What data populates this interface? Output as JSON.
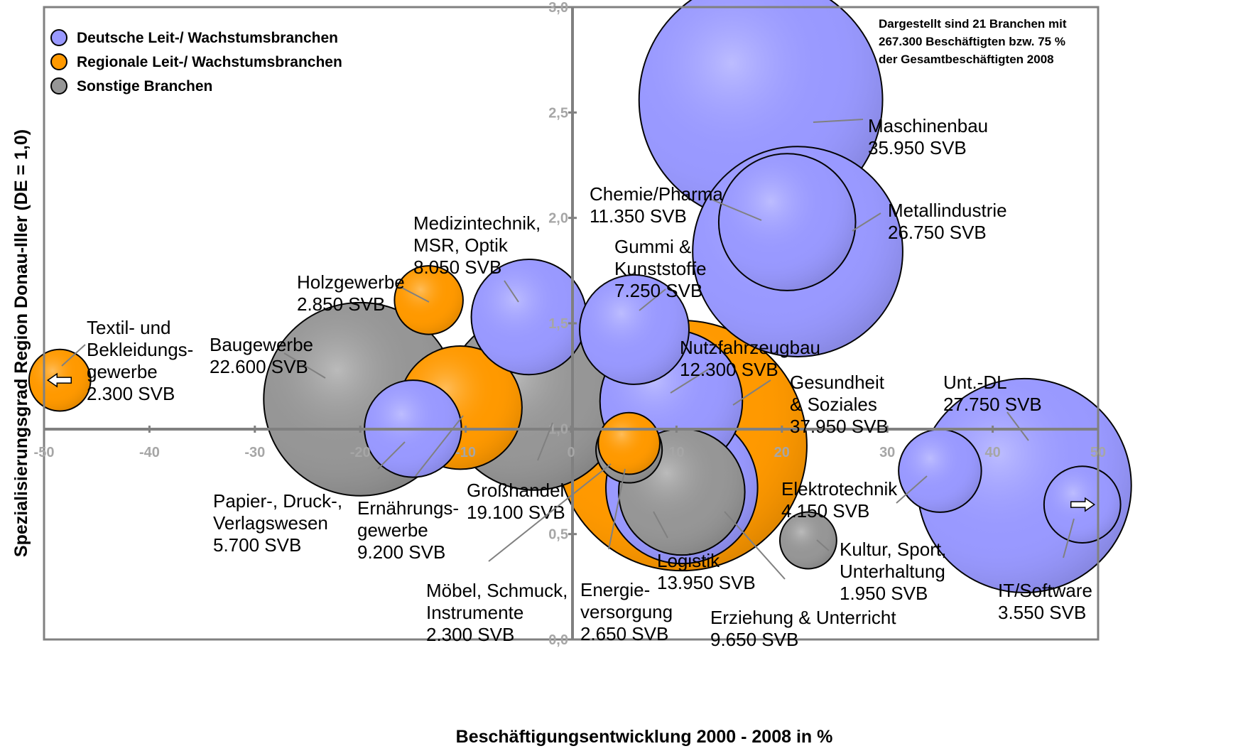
{
  "chart_data": {
    "type": "bubble",
    "title": "",
    "xlabel": "Beschäftigungsentwicklung 2000 - 2008 in %",
    "ylabel": "Spezialisierungsgrad Region Donau-Iller (DE = 1,0)",
    "xlim": [
      -50,
      50
    ],
    "ylim": [
      0.0,
      3.0
    ],
    "x_ticks": [
      "-50",
      "-40",
      "-30",
      "-20",
      "-10",
      "0",
      "10",
      "20",
      "30",
      "40",
      "50"
    ],
    "y_ticks": [
      "0,0",
      "0,5",
      "1,0",
      "1,5",
      "2,0",
      "2,5",
      "3,0"
    ],
    "legend": [
      {
        "name": "Deutsche Leit-/ Wachstumsbranchen",
        "color": "#9999ff"
      },
      {
        "name": "Regionale Leit-/ Wachstumsbranchen",
        "color": "#ff9900"
      },
      {
        "name": "Sonstige Branchen",
        "color": "#969696"
      }
    ],
    "note_lines": [
      "Dargestellt sind 21 Branchen mit",
      "267.300 Beschäftigten bzw. 75 %",
      "der Gesamtbeschäftigten 2008"
    ],
    "series": [
      {
        "label_lines": [
          "Gesundheit",
          "& Soziales",
          "37.950 SVB"
        ],
        "x": 10.5,
        "y": 0.92,
        "svb": 37950,
        "group": 1
      },
      {
        "label_lines": [
          "Maschinenbau",
          "35.950 SVB"
        ],
        "x": 18.0,
        "y": 2.56,
        "svb": 35950,
        "group": 0
      },
      {
        "label_lines": [
          "Unt.-DL",
          "27.750 SVB"
        ],
        "x": 43.0,
        "y": 0.73,
        "svb": 27750,
        "group": 0
      },
      {
        "label_lines": [
          "Metallindustrie",
          "26.750 SVB"
        ],
        "x": 21.5,
        "y": 1.84,
        "svb": 26750,
        "group": 0
      },
      {
        "label_lines": [
          "Baugewerbe",
          "22.600 SVB"
        ],
        "x": -20.0,
        "y": 1.14,
        "svb": 22600,
        "group": 2
      },
      {
        "label_lines": [
          "Großhandel",
          "19.100 SVB"
        ],
        "x": -3.5,
        "y": 1.13,
        "svb": 19100,
        "group": 2
      },
      {
        "label_lines": [
          "Logistik",
          "13.950 SVB"
        ],
        "x": 10.5,
        "y": 0.72,
        "svb": 13950,
        "group": 0
      },
      {
        "label_lines": [
          "Nutzfahrzeugbau",
          "12.300 SVB"
        ],
        "x": 9.5,
        "y": 1.13,
        "svb": 12300,
        "group": 0
      },
      {
        "label_lines": [
          "Chemie/Pharma",
          "11.350 SVB"
        ],
        "x": 20.5,
        "y": 1.98,
        "svb": 11350,
        "group": 0
      },
      {
        "label_lines": [
          "Erziehung & Unterricht",
          "9.650 SVB"
        ],
        "x": 10.5,
        "y": 0.7,
        "svb": 9650,
        "group": 2
      },
      {
        "label_lines": [
          "Ernährungs-",
          "gewerbe",
          "9.200 SVB"
        ],
        "x": -10.5,
        "y": 1.1,
        "svb": 9200,
        "group": 1
      },
      {
        "label_lines": [
          "Medizintechnik,",
          "MSR, Optik",
          "8.050 SVB"
        ],
        "x": -4.0,
        "y": 1.53,
        "svb": 8050,
        "group": 0
      },
      {
        "label_lines": [
          "Gummi &",
          "Kunststoffe",
          "7.250 SVB"
        ],
        "x": 6.0,
        "y": 1.47,
        "svb": 7250,
        "group": 0
      },
      {
        "label_lines": [
          "Papier-, Druck-,",
          "Verlagswesen",
          "5.700 SVB"
        ],
        "x": -15.0,
        "y": 1.0,
        "svb": 5700,
        "group": 0
      },
      {
        "label_lines": [
          "Elektrotechnik",
          "4.150 SVB"
        ],
        "x": 35.0,
        "y": 0.8,
        "svb": 4150,
        "group": 0
      },
      {
        "label_lines": [
          "IT/Software",
          "3.550 SVB"
        ],
        "x": 48.5,
        "y": 0.64,
        "svb": 3550,
        "group": 0,
        "offchart": "right"
      },
      {
        "label_lines": [
          "Holzgewerbe",
          "2.850 SVB"
        ],
        "x": -13.5,
        "y": 1.61,
        "svb": 2850,
        "group": 1
      },
      {
        "label_lines": [
          "Energie-",
          "versorgung",
          "2.650 SVB"
        ],
        "x": 5.5,
        "y": 0.9,
        "svb": 2650,
        "group": 2
      },
      {
        "label_lines": [
          "Möbel, Schmuck,",
          "Instrumente",
          "2.300 SVB"
        ],
        "x": 5.5,
        "y": 0.93,
        "svb": 2300,
        "group": 1
      },
      {
        "label_lines": [
          "Textil- und",
          "Bekleidungs-",
          "gewerbe",
          "2.300 SVB"
        ],
        "x": -48.5,
        "y": 1.23,
        "svb": 2300,
        "group": 1,
        "offchart": "left"
      },
      {
        "label_lines": [
          "Kultur, Sport,",
          "Unterhaltung",
          "1.950 SVB"
        ],
        "x": 22.5,
        "y": 0.47,
        "svb": 1950,
        "group": 2
      }
    ]
  }
}
